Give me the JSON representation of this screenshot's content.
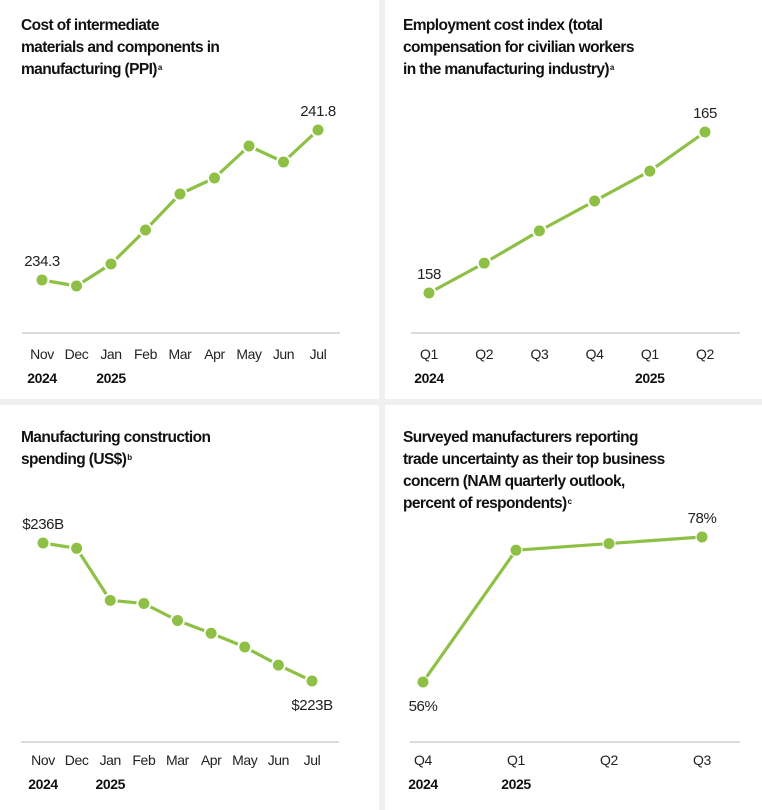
{
  "chart_data": [
    {
      "type": "line",
      "title_lines": [
        "Cost of intermediate",
        "materials and components in",
        "manufacturing (PPI)"
      ],
      "footnote": "a",
      "categories": [
        "Nov",
        "Dec",
        "Jan",
        "Feb",
        "Mar",
        "Apr",
        "May",
        "Jun",
        "Jul"
      ],
      "year_labels": [
        {
          "index": 0,
          "text": "2024"
        },
        {
          "index": 2,
          "text": "2025"
        }
      ],
      "values": [
        234.3,
        234.0,
        235.1,
        236.8,
        238.6,
        239.4,
        241.0,
        240.2,
        241.8
      ],
      "data_labels": [
        {
          "index": 0,
          "text": "234.3"
        },
        {
          "index": 8,
          "text": "241.8"
        }
      ],
      "ylim": [
        234.0,
        241.8
      ],
      "grid": false,
      "line_style": "segmented",
      "color": "#8dc044"
    },
    {
      "type": "line",
      "title_lines": [
        "Employment cost index (total",
        "compensation for civilian workers",
        "in the manufacturing industry)"
      ],
      "footnote": "a",
      "categories": [
        "Q1",
        "Q2",
        "Q3",
        "Q4",
        "Q1",
        "Q2"
      ],
      "year_labels": [
        {
          "index": 0,
          "text": "2024"
        },
        {
          "index": 4,
          "text": "2025"
        }
      ],
      "values": [
        158,
        159.3,
        160.7,
        162.0,
        163.3,
        165
      ],
      "data_labels": [
        {
          "index": 0,
          "text": "158"
        },
        {
          "index": 5,
          "text": "165"
        }
      ],
      "ylim": [
        158,
        165
      ],
      "grid": false,
      "line_style": "segmented",
      "color": "#8dc044"
    },
    {
      "type": "line",
      "title_lines": [
        "Manufacturing construction",
        "spending (US$)"
      ],
      "footnote": "b",
      "categories": [
        "Nov",
        "Dec",
        "Jan",
        "Feb",
        "Mar",
        "Apr",
        "May",
        "Jun",
        "Jul"
      ],
      "year_labels": [
        {
          "index": 0,
          "text": "2024"
        },
        {
          "index": 2,
          "text": "2025"
        }
      ],
      "values": [
        236,
        235.5,
        230.6,
        230.3,
        228.7,
        227.5,
        226.2,
        224.5,
        223
      ],
      "data_labels": [
        {
          "index": 0,
          "text": "$236B"
        },
        {
          "index": 8,
          "text": "$223B"
        }
      ],
      "ylim": [
        223,
        236
      ],
      "grid": false,
      "line_style": "segmented",
      "color": "#8dc044"
    },
    {
      "type": "line",
      "title_lines": [
        "Surveyed manufacturers reporting",
        "trade uncertainty as their top business",
        "concern (NAM quarterly outlook,",
        "percent of respondents)"
      ],
      "footnote": "c",
      "categories": [
        "Q4",
        "Q1",
        "Q2",
        "Q3"
      ],
      "year_labels": [
        {
          "index": 0,
          "text": "2024"
        },
        {
          "index": 1,
          "text": "2025"
        }
      ],
      "values": [
        56,
        76,
        77,
        78
      ],
      "data_labels": [
        {
          "index": 0,
          "text": "56%"
        },
        {
          "index": 3,
          "text": "78%"
        }
      ],
      "ylim": [
        56,
        78
      ],
      "grid": false,
      "line_style": "solid",
      "color": "#8dc044"
    }
  ]
}
